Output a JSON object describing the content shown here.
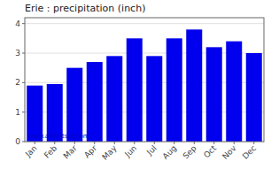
{
  "chart_data": {
    "type": "bar",
    "title": "Erie : precipitation (inch)",
    "categories": [
      "Jan",
      "Feb",
      "Mar",
      "Apr",
      "May",
      "Jun",
      "Jul",
      "Aug",
      "Sep",
      "Oct",
      "Nov",
      "Dec"
    ],
    "values": [
      1.9,
      1.95,
      2.5,
      2.7,
      2.9,
      3.5,
      2.9,
      3.5,
      3.8,
      3.2,
      3.4,
      3.0
    ],
    "color": "#0000EE",
    "ylim": [
      0,
      4.2
    ],
    "yticks": [
      0,
      1,
      2,
      3,
      4
    ],
    "grid": true,
    "annotations": [
      {
        "text": "www.allmetsat.com",
        "color": "#0000CC"
      }
    ]
  }
}
